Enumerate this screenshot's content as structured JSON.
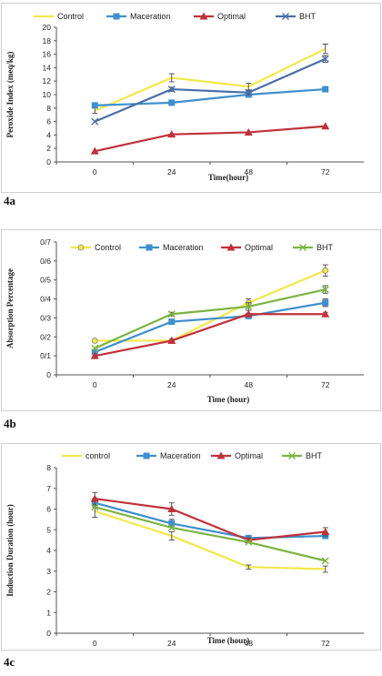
{
  "chart_data": [
    {
      "panel_label": "4a",
      "type": "line",
      "categories": [
        "0",
        "24",
        "48",
        "72"
      ],
      "xlabel": "Time(hour)",
      "ylabel": "Peroxide Index (meq/kg)",
      "ylim": [
        0,
        20
      ],
      "yticks": [
        "0",
        "2",
        "4",
        "6",
        "8",
        "10",
        "12",
        "14",
        "16",
        "18",
        "20"
      ],
      "legend_position": "top",
      "series": [
        {
          "name": "Control",
          "values": [
            7.6,
            12.5,
            11.2,
            16.8
          ],
          "color": "#f2e84a",
          "marker": "none",
          "err": [
            0.4,
            0.6,
            0.5,
            0.7
          ]
        },
        {
          "name": "Maceration",
          "values": [
            8.4,
            8.8,
            10.0,
            10.8
          ],
          "color": "#3f8fce",
          "marker": "square",
          "err": [
            0,
            0,
            0.3,
            0
          ]
        },
        {
          "name": "Optimal",
          "values": [
            1.6,
            4.1,
            4.4,
            5.3
          ],
          "color": "#c0313a",
          "marker": "triangle",
          "err": [
            0,
            0,
            0,
            0
          ]
        },
        {
          "name": "BHT",
          "values": [
            6.0,
            10.8,
            10.3,
            15.3
          ],
          "color": "#4a6ea8",
          "marker": "x",
          "err": [
            0,
            0.3,
            0.3,
            0.5
          ]
        }
      ]
    },
    {
      "panel_label": "4b",
      "type": "line",
      "categories": [
        "0",
        "24",
        "48",
        "72"
      ],
      "xlabel": "Time (hour)",
      "ylabel": "Absorption Percentage",
      "ylim": [
        0,
        0.7
      ],
      "yticks": [
        "0",
        "0/1",
        "0/2",
        "0/3",
        "0/4",
        "0/5",
        "0/6",
        "0/7"
      ],
      "legend_position": "top",
      "series": [
        {
          "name": "Control",
          "values": [
            0.18,
            0.18,
            0.38,
            0.55
          ],
          "color": "#f2e84a",
          "marker": "circle",
          "err": [
            0,
            0,
            0.02,
            0.03
          ]
        },
        {
          "name": "Maceration",
          "values": [
            0.12,
            0.28,
            0.31,
            0.38
          ],
          "color": "#3f8fce",
          "marker": "square",
          "err": [
            0,
            0,
            0,
            0.02
          ]
        },
        {
          "name": "Optimal",
          "values": [
            0.1,
            0.18,
            0.32,
            0.32
          ],
          "color": "#c0313a",
          "marker": "triangle",
          "err": [
            0,
            0,
            0,
            0.01
          ]
        },
        {
          "name": "BHT",
          "values": [
            0.14,
            0.32,
            0.36,
            0.45
          ],
          "color": "#7cb342",
          "marker": "x",
          "err": [
            0,
            0.01,
            0.02,
            0.02
          ]
        }
      ]
    },
    {
      "panel_label": "4c",
      "type": "line",
      "categories": [
        "0",
        "24",
        "48",
        "72"
      ],
      "xlabel": "Time (hour)",
      "ylabel": "Induction Duration (hour)",
      "ylim": [
        0,
        8
      ],
      "yticks": [
        "0",
        "1",
        "2",
        "3",
        "4",
        "5",
        "6",
        "7",
        "8"
      ],
      "legend_position": "top",
      "series": [
        {
          "name": "control",
          "values": [
            5.9,
            4.7,
            3.2,
            3.1
          ],
          "color": "#f2e84a",
          "marker": "none",
          "err": [
            0.3,
            0.2,
            0.1,
            0.15
          ]
        },
        {
          "name": "Maceration",
          "values": [
            6.3,
            5.3,
            4.6,
            4.7
          ],
          "color": "#3f8fce",
          "marker": "square",
          "err": [
            0.2,
            0.2,
            0.1,
            0.1
          ]
        },
        {
          "name": "Optimal",
          "values": [
            6.5,
            6.0,
            4.5,
            4.9
          ],
          "color": "#c0313a",
          "marker": "triangle",
          "err": [
            0.3,
            0.3,
            0.1,
            0.2
          ]
        },
        {
          "name": "BHT",
          "values": [
            6.1,
            5.1,
            4.4,
            3.5
          ],
          "color": "#7cb342",
          "marker": "x",
          "err": [
            0,
            0,
            0,
            0
          ]
        }
      ]
    }
  ]
}
